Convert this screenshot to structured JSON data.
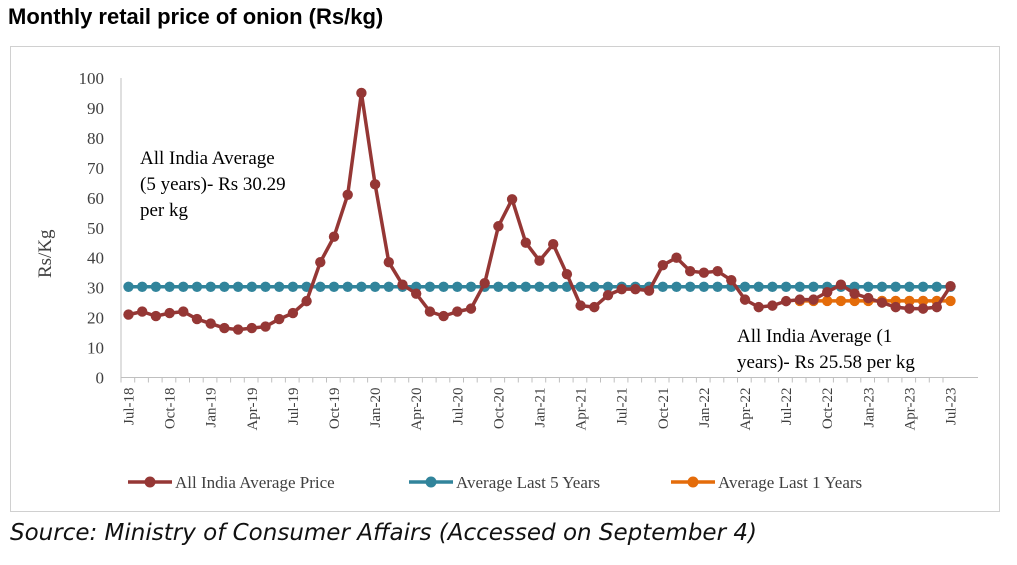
{
  "title": "Monthly retail price of onion (Rs/kg)",
  "source": "Source: Ministry of Consumer Affairs (Accessed on September 4)",
  "chart_data": {
    "type": "line",
    "ylabel": "Rs/Kg",
    "ylim": [
      0,
      100
    ],
    "yticks": [
      0,
      10,
      20,
      30,
      40,
      50,
      60,
      70,
      80,
      90,
      100
    ],
    "x_tick_labels": [
      "Jul-18",
      "Oct-18",
      "Jan-19",
      "Apr-19",
      "Jul-19",
      "Oct-19",
      "Jan-20",
      "Apr-20",
      "Jul-20",
      "Oct-20",
      "Jan-21",
      "Apr-21",
      "Jul-21",
      "Oct-21",
      "Jan-22",
      "Apr-22",
      "Jul-22",
      "Oct-22",
      "Jan-23",
      "Apr-23",
      "Jul-23"
    ],
    "series": [
      {
        "name": "All India Average Price",
        "color": "#953735",
        "values": [
          21,
          22,
          20.5,
          21.5,
          22,
          19.5,
          18,
          16.5,
          16,
          16.5,
          17,
          19.5,
          21.5,
          25.5,
          38.5,
          47,
          61,
          95,
          64.5,
          38.5,
          31,
          28,
          22,
          20.5,
          22,
          23,
          31.5,
          50.5,
          59.5,
          45,
          39,
          44.5,
          34.5,
          24,
          23.5,
          27.5,
          29.5,
          29.5,
          29,
          37.5,
          40,
          35.5,
          35,
          35.5,
          32.5,
          26,
          23.5,
          24,
          25.5,
          26,
          26,
          28.5,
          31,
          28,
          26.5,
          25,
          23.5,
          23,
          23,
          23.5,
          30.5
        ]
      },
      {
        "name": "Average Last 5 Years",
        "color": "#31849b",
        "values": [
          30.29,
          30.29,
          30.29,
          30.29,
          30.29,
          30.29,
          30.29,
          30.29,
          30.29,
          30.29,
          30.29,
          30.29,
          30.29,
          30.29,
          30.29,
          30.29,
          30.29,
          30.29,
          30.29,
          30.29,
          30.29,
          30.29,
          30.29,
          30.29,
          30.29,
          30.29,
          30.29,
          30.29,
          30.29,
          30.29,
          30.29,
          30.29,
          30.29,
          30.29,
          30.29,
          30.29,
          30.29,
          30.29,
          30.29,
          30.29,
          30.29,
          30.29,
          30.29,
          30.29,
          30.29,
          30.29,
          30.29,
          30.29,
          30.29,
          30.29,
          30.29,
          30.29,
          30.29,
          30.29,
          30.29,
          30.29,
          30.29,
          30.29,
          30.29,
          30.29,
          30.29
        ]
      },
      {
        "name": "Average Last 1 Years",
        "color": "#e46c0a",
        "start_index": 49,
        "values": [
          25.58,
          25.58,
          25.58,
          25.58,
          25.58,
          25.58,
          25.58,
          25.58,
          25.58,
          25.58,
          25.58,
          25.58
        ]
      }
    ],
    "annotations": [
      {
        "lines": [
          "All India Average",
          "(5 years)- Rs 30.29",
          "per kg"
        ]
      },
      {
        "lines": [
          "All India Average (1",
          "years)- Rs 25.58 per kg"
        ]
      }
    ],
    "legend": "bottom"
  }
}
